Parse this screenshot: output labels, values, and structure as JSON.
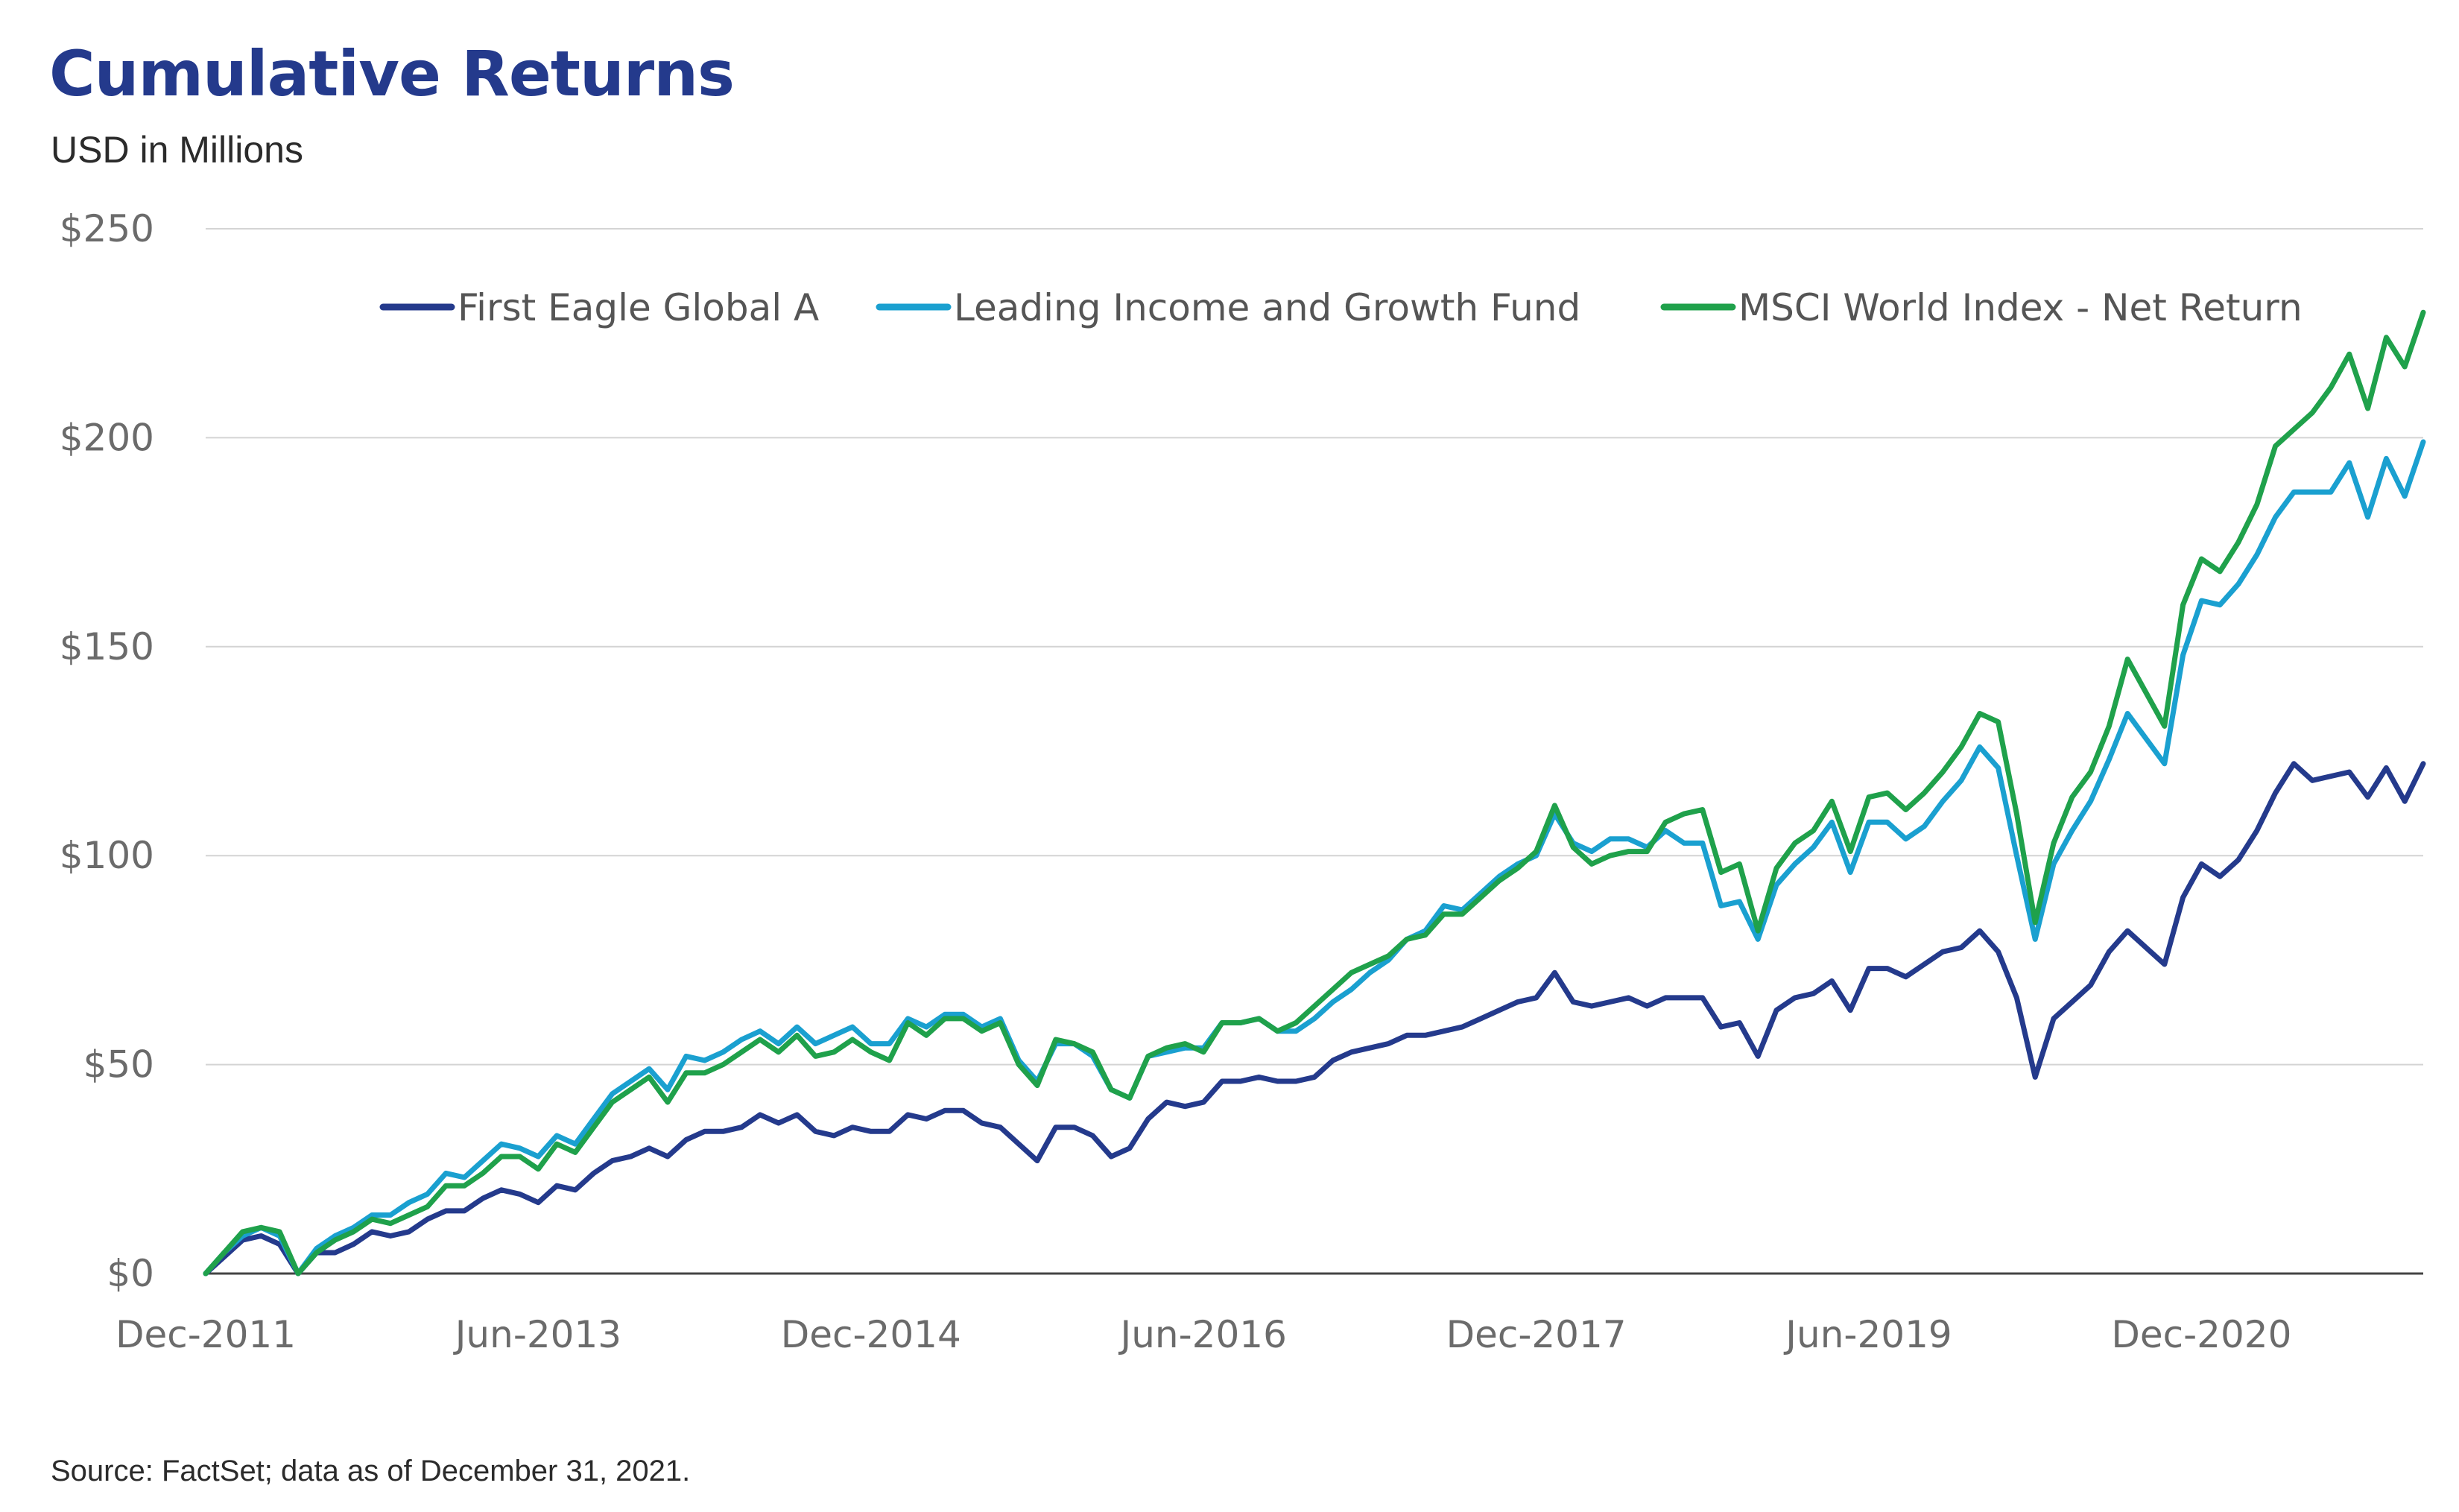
{
  "chart_data": {
    "type": "line",
    "title": "Cumulative Returns",
    "subtitle": "USD in Millions",
    "source": "Source: FactSet; data as of December 31, 2021.",
    "y_ticks": [
      0,
      50,
      100,
      150,
      200,
      250
    ],
    "y_tick_labels": [
      "$0",
      "$50",
      "$100",
      "$150",
      "$200",
      "$250"
    ],
    "x_tick_labels": [
      "Dec-2011",
      "Jun-2013",
      "Dec-2014",
      "Jun-2016",
      "Dec-2017",
      "Jun-2019",
      "Dec-2020"
    ],
    "x_tick_months": [
      0,
      18,
      36,
      54,
      72,
      90,
      108
    ],
    "x_range_months": [
      0,
      120
    ],
    "ylim": [
      0,
      250
    ],
    "grid": "horizontal",
    "legend_position": "top-right",
    "series": [
      {
        "name": "First Eagle Global A",
        "color": "#243a8c",
        "values": [
          0,
          4,
          8,
          9,
          7,
          0,
          5,
          5,
          7,
          10,
          9,
          10,
          13,
          15,
          15,
          18,
          20,
          19,
          17,
          21,
          20,
          24,
          27,
          28,
          30,
          28,
          32,
          34,
          34,
          35,
          38,
          36,
          38,
          34,
          33,
          35,
          34,
          34,
          38,
          37,
          39,
          39,
          36,
          35,
          31,
          27,
          35,
          35,
          33,
          28,
          30,
          37,
          41,
          40,
          41,
          46,
          46,
          47,
          46,
          46,
          47,
          51,
          53,
          54,
          55,
          57,
          57,
          58,
          59,
          61,
          63,
          65,
          66,
          72,
          65,
          64,
          65,
          66,
          64,
          66,
          66,
          66,
          59,
          60,
          52,
          63,
          66,
          67,
          70,
          63,
          73,
          73,
          71,
          74,
          77,
          78,
          82,
          77,
          66,
          47,
          61,
          65,
          69,
          77,
          82,
          78,
          74,
          90,
          98,
          95,
          99,
          106,
          115,
          122,
          118,
          119,
          120,
          114,
          121,
          113,
          122
        ]
      },
      {
        "name": "Leading Income and Growth Fund",
        "color": "#1aa0d0",
        "values": [
          0,
          5,
          9,
          11,
          9,
          0,
          6,
          9,
          11,
          14,
          14,
          17,
          19,
          24,
          23,
          27,
          31,
          30,
          28,
          33,
          31,
          37,
          43,
          46,
          49,
          44,
          52,
          51,
          53,
          56,
          58,
          55,
          59,
          55,
          57,
          59,
          55,
          55,
          61,
          59,
          62,
          62,
          59,
          61,
          51,
          46,
          55,
          55,
          52,
          44,
          42,
          52,
          53,
          54,
          54,
          60,
          60,
          61,
          58,
          58,
          61,
          65,
          68,
          72,
          75,
          80,
          82,
          88,
          87,
          91,
          95,
          98,
          100,
          110,
          103,
          101,
          104,
          104,
          102,
          106,
          103,
          103,
          88,
          89,
          80,
          93,
          98,
          102,
          108,
          96,
          108,
          108,
          104,
          107,
          113,
          118,
          126,
          121,
          100,
          80,
          98,
          106,
          113,
          123,
          134,
          128,
          122,
          148,
          161,
          160,
          165,
          172,
          181,
          187,
          187,
          187,
          194,
          181,
          195,
          186,
          199
        ]
      },
      {
        "name": "MSCI World Index - Net Return",
        "color": "#1fa14b",
        "values": [
          0,
          5,
          10,
          11,
          10,
          0,
          5,
          8,
          10,
          13,
          12,
          14,
          16,
          21,
          21,
          24,
          28,
          28,
          25,
          31,
          29,
          35,
          41,
          44,
          47,
          41,
          48,
          48,
          50,
          53,
          56,
          53,
          57,
          52,
          53,
          56,
          53,
          51,
          60,
          57,
          61,
          61,
          58,
          60,
          50,
          45,
          56,
          55,
          53,
          44,
          42,
          52,
          54,
          55,
          53,
          60,
          60,
          61,
          58,
          60,
          64,
          68,
          72,
          74,
          76,
          80,
          81,
          86,
          86,
          90,
          94,
          97,
          101,
          112,
          102,
          98,
          100,
          101,
          101,
          108,
          110,
          111,
          96,
          98,
          82,
          97,
          103,
          106,
          113,
          101,
          114,
          115,
          111,
          115,
          120,
          126,
          134,
          132,
          110,
          84,
          103,
          114,
          120,
          131,
          147,
          139,
          131,
          160,
          171,
          168,
          175,
          184,
          198,
          202,
          206,
          212,
          220,
          207,
          224,
          217,
          230
        ]
      }
    ]
  }
}
